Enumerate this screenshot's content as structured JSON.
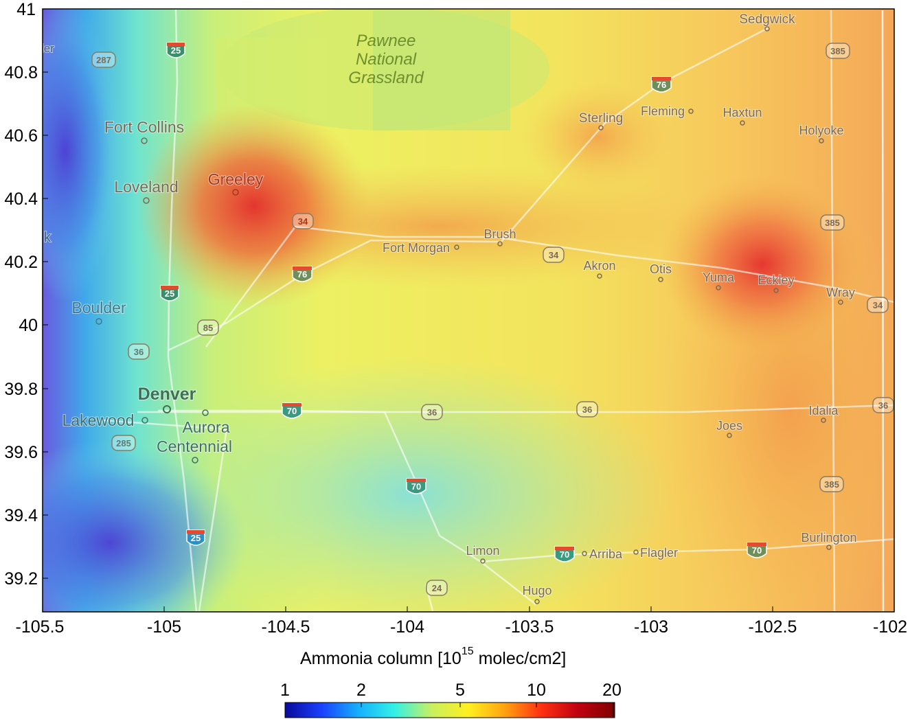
{
  "map": {
    "x_ticks": [
      "-105.5",
      "-105",
      "-104.5",
      "-104",
      "-103.5",
      "-103",
      "-102.5",
      "-102"
    ],
    "y_ticks": [
      "41",
      "40.8",
      "40.6",
      "40.4",
      "40.2",
      "40",
      "39.8",
      "39.6",
      "39.4",
      "39.2"
    ],
    "park": {
      "line1": "Pawnee",
      "line2": "National",
      "line3": "Grassland"
    },
    "places": {
      "sedgwick": "Sedgwick",
      "fort_collins": "Fort Collins",
      "loveland": "Loveland",
      "greeley": "Greeley",
      "sterling": "Sterling",
      "fleming": "Fleming",
      "haxtun": "Haxtun",
      "holyoke": "Holyoke",
      "brush": "Brush",
      "fort_morgan": "Fort Morgan",
      "akron": "Akron",
      "otis": "Otis",
      "yuma": "Yuma",
      "eckley": "Eckley",
      "wray": "Wray",
      "boulder": "Boulder",
      "denver": "Denver",
      "lakewood": "Lakewood",
      "aurora": "Aurora",
      "centennial": "Centennial",
      "joes": "Joes",
      "idalia": "Idalia",
      "burlington": "Burlington",
      "limon": "Limon",
      "arriba": "Arriba",
      "flagler": "Flagler",
      "hugo": "Hugo",
      "edge_er": "ier",
      "edge_k": "k"
    },
    "shields": {
      "i25": "25",
      "i76": "76",
      "i70": "70",
      "us287": "287",
      "us385": "385",
      "us34": "34",
      "us85": "85",
      "us36": "36",
      "us285": "285",
      "us24": "24"
    }
  },
  "colorbar": {
    "title": "Ammonia column [10",
    "title_exponent": "15",
    "title_suffix": " molec/cm2]",
    "ticks": [
      "1",
      "2",
      "5",
      "10",
      "20"
    ],
    "colormap": [
      "#0a0a9a",
      "#1a40ff",
      "#15b0ff",
      "#35f0e6",
      "#c8f060",
      "#fff020",
      "#ffa210",
      "#ff3010",
      "#c00010",
      "#800000"
    ]
  },
  "hotspots": {
    "colors": {
      "low": "#4b3fd6",
      "mid": "#e8ef5a",
      "high": "#e0262a"
    }
  }
}
